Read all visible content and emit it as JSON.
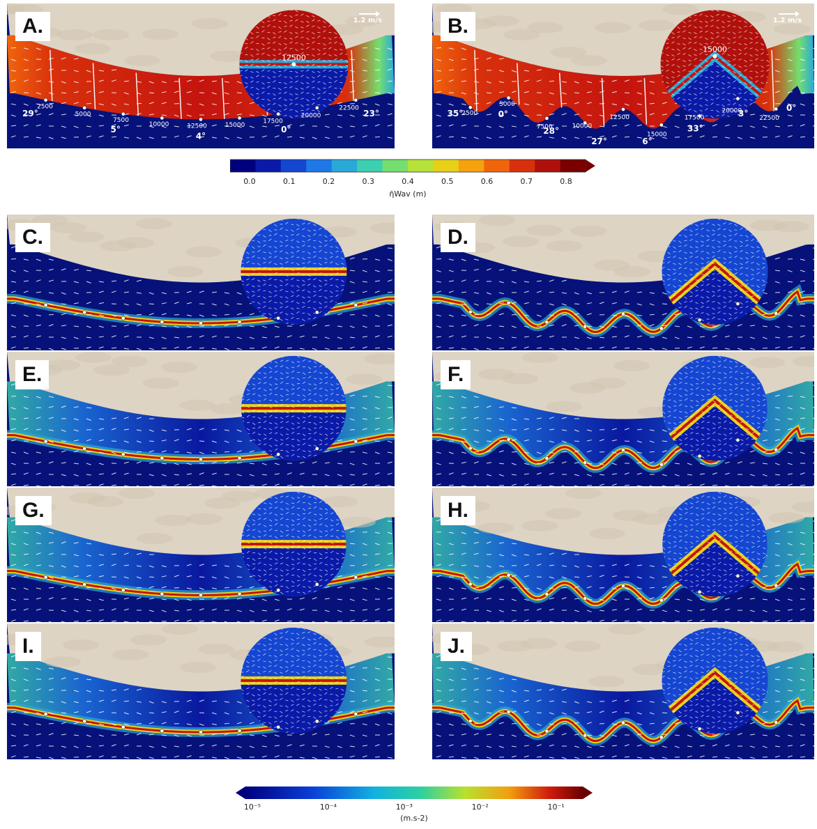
{
  "panels": [
    {
      "id": "A",
      "label": "A.",
      "type": "height",
      "layout": "straight",
      "scale": "1.2 m/s",
      "distances": [
        "2500",
        "5000",
        "7500",
        "10000",
        "12500",
        "15000",
        "17500",
        "20000",
        "22500"
      ],
      "angles": [
        "29",
        "5",
        "4",
        "0",
        "23"
      ],
      "inset_distance": "12500"
    },
    {
      "id": "B",
      "label": "B.",
      "type": "height",
      "layout": "wavy",
      "scale": "1.2 m/s",
      "distances": [
        "2500",
        "5000",
        "7500",
        "10000",
        "12500",
        "15000",
        "17500",
        "20000",
        "22500"
      ],
      "angles": [
        "35",
        "0",
        "28",
        "27",
        "6",
        "33",
        "3",
        "0"
      ],
      "inset_distance": "15000"
    },
    {
      "id": "C",
      "label": "C.",
      "type": "accel",
      "layout": "straight"
    },
    {
      "id": "D",
      "label": "D.",
      "type": "accel",
      "layout": "wavy"
    },
    {
      "id": "E",
      "label": "E.",
      "type": "accel",
      "layout": "straight"
    },
    {
      "id": "F",
      "label": "F.",
      "type": "accel",
      "layout": "wavy"
    },
    {
      "id": "G",
      "label": "G.",
      "type": "accel",
      "layout": "straight"
    },
    {
      "id": "H",
      "label": "H.",
      "type": "accel",
      "layout": "wavy"
    },
    {
      "id": "I",
      "label": "I.",
      "type": "accel",
      "layout": "straight"
    },
    {
      "id": "J",
      "label": "J.",
      "type": "accel",
      "layout": "wavy"
    }
  ],
  "colorbar_top": {
    "ticks": [
      "0.0",
      "0.1",
      "0.2",
      "0.3",
      "0.4",
      "0.5",
      "0.6",
      "0.7",
      "0.8"
    ],
    "label": "η̄Wav (m)",
    "colors": [
      "#00007f",
      "#0a1aa8",
      "#1446d2",
      "#1e78e6",
      "#2aa8d8",
      "#3ccfb0",
      "#74de6e",
      "#b6e23a",
      "#e8d018",
      "#f6a10e",
      "#f0650c",
      "#d8300c",
      "#b0100c",
      "#7a0000"
    ]
  },
  "colorbar_bottom": {
    "ticks": [
      "10⁻⁵",
      "10⁻⁴",
      "10⁻³",
      "10⁻²",
      "10⁻¹"
    ],
    "label": "(m.s-2)"
  },
  "colors": {
    "land": "#ddd4c4",
    "deep": "#06127a",
    "peak": "#c4140e"
  }
}
